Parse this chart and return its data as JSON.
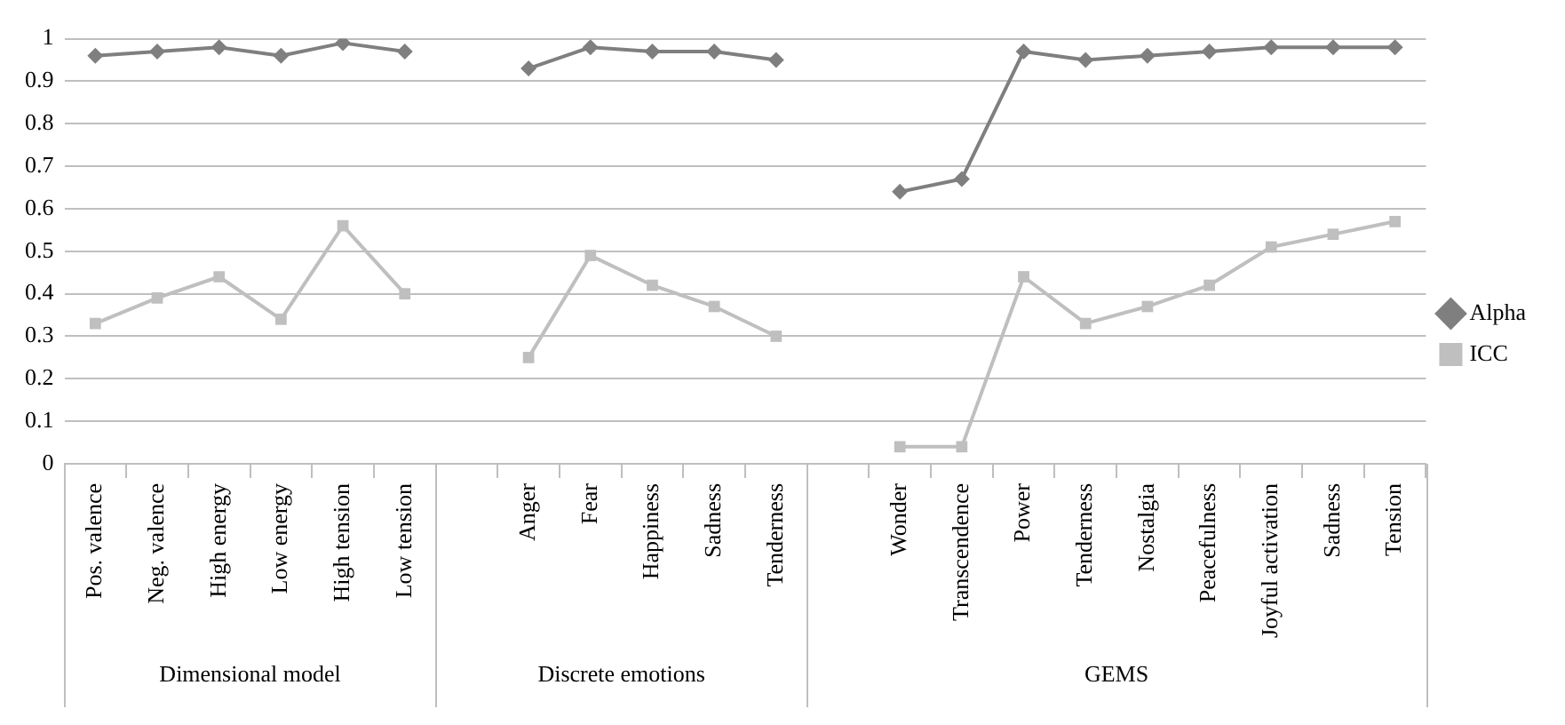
{
  "chart_data": {
    "type": "line",
    "categories": [
      "Pos. valence",
      "Neg. valence",
      "High energy",
      "Low energy",
      "High tension",
      "Low tension",
      null,
      "Anger",
      "Fear",
      "Happiness",
      "Sadness",
      "Tenderness",
      null,
      "Wonder",
      "Transcendence",
      "Power",
      "Tenderness",
      "Nostalgia",
      "Peacefulness",
      "Joyful activation",
      "Sadness",
      "Tension"
    ],
    "series": [
      {
        "name": "Alpha",
        "color": "#7f7f7f",
        "marker": "diamond",
        "values": [
          0.96,
          0.97,
          0.98,
          0.96,
          0.99,
          0.97,
          null,
          0.93,
          0.98,
          0.97,
          0.97,
          0.95,
          null,
          0.64,
          0.67,
          0.97,
          0.95,
          0.96,
          0.97,
          0.98,
          0.98,
          0.98
        ]
      },
      {
        "name": "ICC",
        "color": "#bfbfbf",
        "marker": "square",
        "values": [
          0.33,
          0.39,
          0.44,
          0.34,
          0.56,
          0.4,
          null,
          0.25,
          0.49,
          0.42,
          0.37,
          0.3,
          null,
          0.04,
          0.04,
          0.44,
          0.33,
          0.37,
          0.42,
          0.51,
          0.54,
          0.57
        ]
      }
    ],
    "annotations": [
      "Dimensional model",
      "Discrete emotions",
      "GEMS"
    ],
    "ylim": [
      0,
      1
    ],
    "yticks": [
      0,
      0.1,
      0.2,
      0.3,
      0.4,
      0.5,
      0.6,
      0.7,
      0.8,
      0.9,
      1
    ],
    "grid": "y",
    "legend": "right",
    "line_style": "solid"
  }
}
